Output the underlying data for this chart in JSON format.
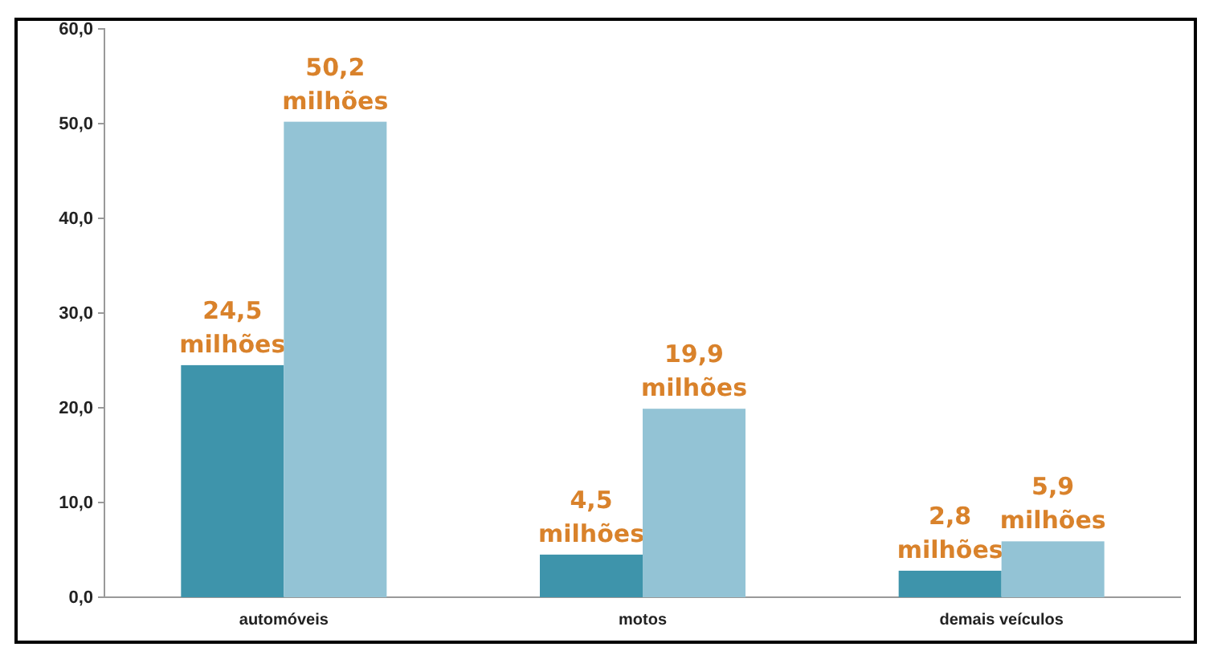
{
  "chart_data": {
    "type": "bar",
    "categories": [
      "automóveis",
      "motos",
      "demais veículos"
    ],
    "series": [
      {
        "color": "#3e94ab",
        "values": [
          24.5,
          4.5,
          2.8
        ],
        "value_labels": [
          "24,5 milhões",
          "4,5 milhões",
          "2,8 milhões"
        ]
      },
      {
        "color": "#93c3d5",
        "values": [
          50.2,
          19.9,
          5.9
        ],
        "value_labels": [
          "50,2 milhões",
          "19,9 milhões",
          "5,9 milhões"
        ]
      }
    ],
    "ylim": [
      0,
      60
    ],
    "yticks": [
      {
        "value": 0,
        "label": "0,0"
      },
      {
        "value": 10,
        "label": "10,0"
      },
      {
        "value": 20,
        "label": "20,0"
      },
      {
        "value": 30,
        "label": "30,0"
      },
      {
        "value": 40,
        "label": "40,0"
      },
      {
        "value": 50,
        "label": "50,0"
      },
      {
        "value": 60,
        "label": "60,0"
      }
    ],
    "grid": false
  }
}
